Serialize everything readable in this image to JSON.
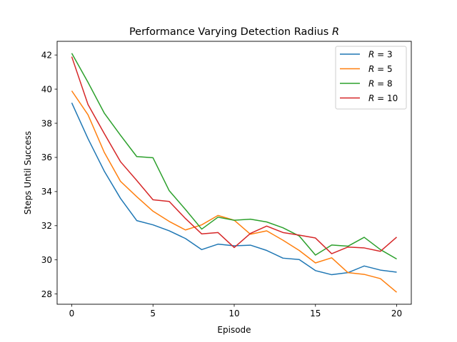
{
  "chart_data": {
    "type": "line",
    "title_main": "Performance Varying Detection Radius ",
    "title_var": "R",
    "xlabel": "Episode",
    "ylabel": "Steps Until Success",
    "xlim": [
      -0.9,
      20.9
    ],
    "ylim": [
      27.4,
      42.8
    ],
    "xticks": [
      0,
      5,
      10,
      15,
      20
    ],
    "yticks": [
      28,
      30,
      32,
      34,
      36,
      38,
      40,
      42
    ],
    "grid": false,
    "legend_position": "top-right",
    "x": [
      0,
      1,
      2,
      3,
      4,
      5,
      6,
      7,
      8,
      9,
      10,
      11,
      12,
      13,
      14,
      15,
      16,
      17,
      18,
      19,
      20
    ],
    "series": [
      {
        "var": "R",
        "eq": " = ",
        "val": "3",
        "color": "#1f77b4",
        "values": [
          39.2,
          37.1,
          35.2,
          33.6,
          32.3,
          32.05,
          31.7,
          31.25,
          30.6,
          30.92,
          30.82,
          30.86,
          30.55,
          30.1,
          30.02,
          29.37,
          29.13,
          29.25,
          29.64,
          29.4,
          29.28
        ]
      },
      {
        "var": "R",
        "eq": " = ",
        "val": "5",
        "color": "#ff7f0e",
        "values": [
          39.9,
          38.5,
          36.3,
          34.6,
          33.7,
          32.85,
          32.25,
          31.75,
          32.05,
          32.6,
          32.32,
          31.5,
          31.7,
          31.15,
          30.55,
          29.82,
          30.12,
          29.25,
          29.15,
          28.9,
          28.1
        ]
      },
      {
        "var": "R",
        "eq": " = ",
        "val": "8",
        "color": "#2ca02c",
        "values": [
          42.1,
          40.4,
          38.6,
          37.3,
          36.05,
          35.98,
          34.05,
          32.95,
          31.8,
          32.5,
          32.32,
          32.38,
          32.22,
          31.88,
          31.4,
          30.28,
          30.87,
          30.8,
          31.32,
          30.6,
          30.05
        ]
      },
      {
        "var": "R",
        "eq": " = ",
        "val": "10",
        "color": "#d62728",
        "values": [
          41.9,
          39.1,
          37.4,
          35.75,
          34.65,
          33.52,
          33.42,
          32.42,
          31.52,
          31.6,
          30.72,
          31.55,
          31.98,
          31.6,
          31.45,
          31.28,
          30.36,
          30.75,
          30.7,
          30.5,
          31.33
        ]
      }
    ]
  }
}
